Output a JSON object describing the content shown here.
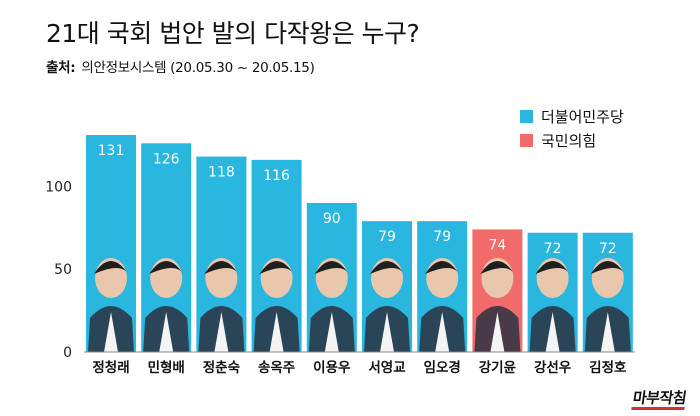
{
  "title": "21대 국회 법안 발의 다작왕은 누구?",
  "source": {
    "prefix": "출처:",
    "text": "의안정보시스템 (20.05.30 ~ 20.05.15)"
  },
  "logo": "마부작침",
  "legend": [
    {
      "label": "더불어민주당",
      "color": "#29b6df"
    },
    {
      "label": "국민의힘",
      "color": "#f26b6b"
    }
  ],
  "chart_data": {
    "type": "bar",
    "title": "21대 국회 법안 발의 다작왕은 누구?",
    "xlabel": "",
    "ylabel": "",
    "ylim": [
      0,
      140
    ],
    "yticks": [
      0,
      50,
      100
    ],
    "grid": false,
    "legend_position": "top-right",
    "categories": [
      "정청래",
      "민형배",
      "정춘숙",
      "송옥주",
      "이용우",
      "서영교",
      "임오경",
      "강기윤",
      "강선우",
      "김정호"
    ],
    "values": [
      131,
      126,
      118,
      116,
      90,
      79,
      79,
      74,
      72,
      72
    ],
    "party": [
      "더불어민주당",
      "더불어민주당",
      "더불어민주당",
      "더불어민주당",
      "더불어민주당",
      "더불어민주당",
      "더불어민주당",
      "국민의힘",
      "더불어민주당",
      "더불어민주당"
    ],
    "series": [
      {
        "name": "더불어민주당",
        "color": "#29b6df"
      },
      {
        "name": "국민의힘",
        "color": "#f26b6b"
      }
    ]
  }
}
